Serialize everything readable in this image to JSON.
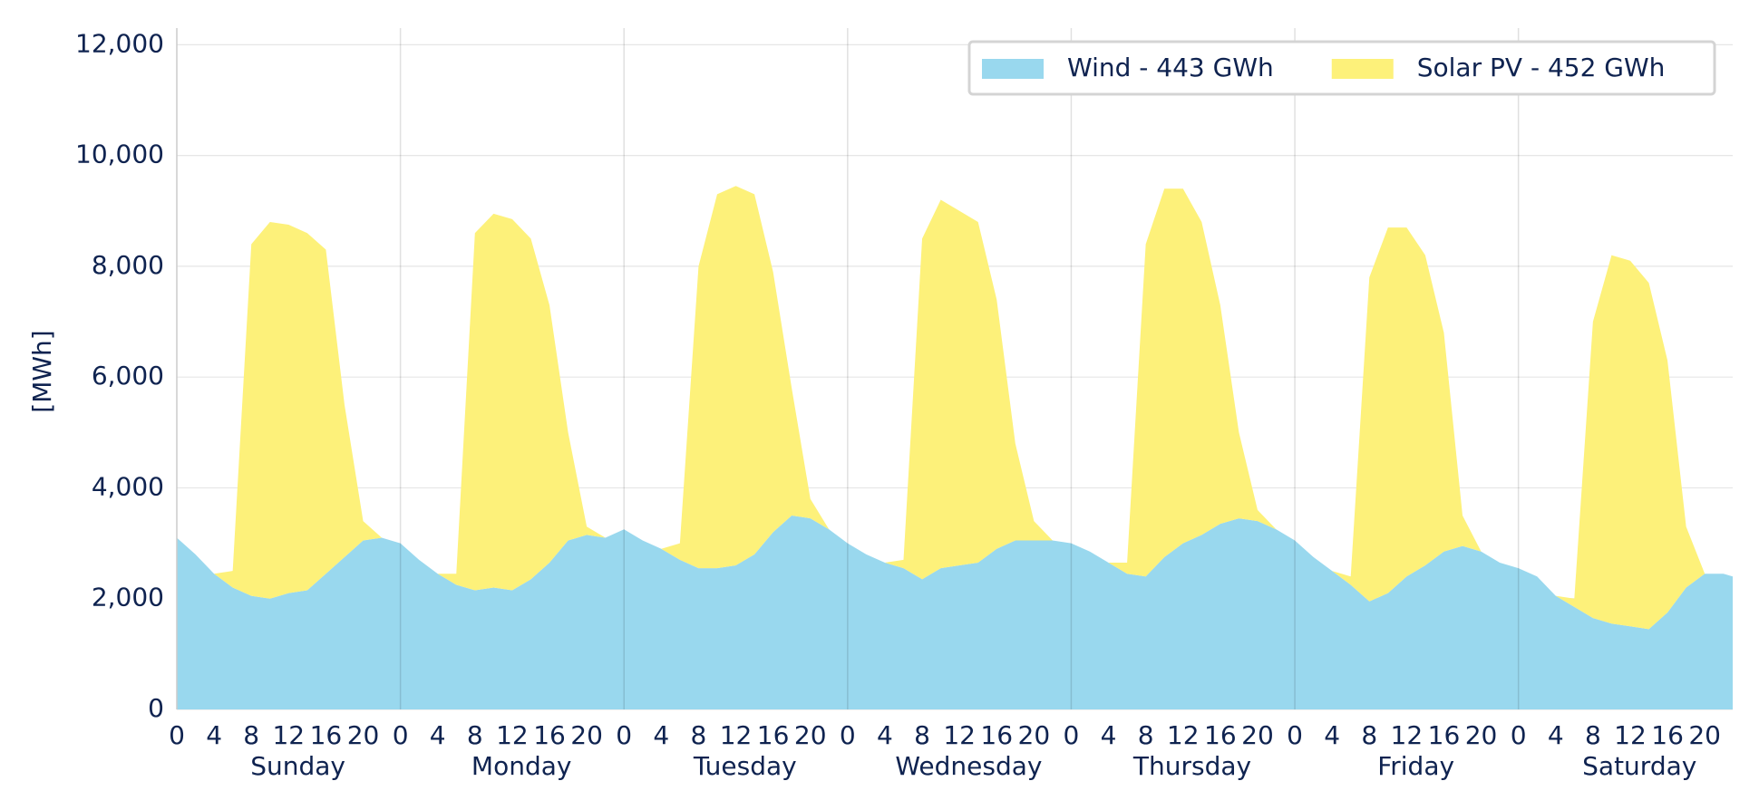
{
  "chart_data": {
    "type": "stacked-area",
    "ylabel": "[MWh]",
    "x": [
      0,
      2,
      4,
      6,
      8,
      10,
      12,
      14,
      16,
      18,
      20,
      22,
      24,
      26,
      28,
      30,
      32,
      34,
      36,
      38,
      40,
      42,
      44,
      46,
      48,
      50,
      52,
      54,
      56,
      58,
      60,
      62,
      64,
      66,
      68,
      70,
      72,
      74,
      76,
      78,
      80,
      82,
      84,
      86,
      88,
      90,
      92,
      94,
      96,
      98,
      100,
      102,
      104,
      106,
      108,
      110,
      112,
      114,
      116,
      118,
      120,
      122,
      124,
      126,
      128,
      130,
      132,
      134,
      136,
      138,
      140,
      142,
      144,
      146,
      148,
      150,
      152,
      154,
      156,
      158,
      160,
      162,
      164,
      166,
      167
    ],
    "series": [
      {
        "name": "Wind - 443 GWh",
        "color": "#99d8ee",
        "values": [
          3100,
          2800,
          2450,
          2200,
          2050,
          2000,
          2100,
          2150,
          2450,
          2750,
          3050,
          3100,
          3000,
          2700,
          2450,
          2250,
          2150,
          2200,
          2150,
          2350,
          2650,
          3050,
          3150,
          3100,
          3250,
          3050,
          2900,
          2700,
          2550,
          2550,
          2600,
          2800,
          3200,
          3500,
          3450,
          3250,
          3000,
          2800,
          2650,
          2550,
          2350,
          2550,
          2600,
          2650,
          2900,
          3050,
          3050,
          3050,
          3000,
          2850,
          2650,
          2450,
          2400,
          2750,
          3000,
          3150,
          3350,
          3450,
          3400,
          3250,
          3050,
          2750,
          2500,
          2250,
          1950,
          2100,
          2400,
          2600,
          2850,
          2950,
          2850,
          2650,
          2550,
          2400,
          2050,
          1850,
          1650,
          1550,
          1500,
          1450,
          1750,
          2200,
          2450,
          2450,
          2400
        ]
      },
      {
        "name": "Solar PV - 452 GWh",
        "color": "#fdf17a",
        "values": [
          0,
          0,
          0,
          300,
          6350,
          6800,
          6650,
          6450,
          5850,
          2750,
          350,
          0,
          0,
          0,
          0,
          200,
          6450,
          6750,
          6700,
          6150,
          4650,
          1950,
          150,
          0,
          0,
          0,
          0,
          300,
          5450,
          6750,
          6850,
          6500,
          4700,
          2300,
          350,
          0,
          0,
          0,
          0,
          150,
          6150,
          6650,
          6400,
          6150,
          4500,
          1750,
          350,
          0,
          0,
          0,
          0,
          200,
          6000,
          6650,
          6400,
          5650,
          3950,
          1550,
          200,
          0,
          0,
          0,
          0,
          150,
          5850,
          6600,
          6300,
          5600,
          3950,
          550,
          0,
          0,
          0,
          0,
          0,
          150,
          5350,
          6650,
          6600,
          6250,
          4550,
          1100,
          0,
          0,
          0
        ]
      }
    ],
    "xlim": [
      0,
      167
    ],
    "xticks": [
      0,
      4,
      8,
      12,
      16,
      20,
      {
        "value": 24,
        "label": "0"
      },
      {
        "value": 28,
        "label": "4"
      },
      {
        "value": 32,
        "label": "8"
      },
      {
        "value": 36,
        "label": "12"
      },
      {
        "value": 40,
        "label": "16"
      },
      {
        "value": 44,
        "label": "20"
      },
      {
        "value": 48,
        "label": "0"
      },
      {
        "value": 52,
        "label": "4"
      },
      {
        "value": 56,
        "label": "8"
      },
      {
        "value": 60,
        "label": "12"
      },
      {
        "value": 64,
        "label": "16"
      },
      {
        "value": 68,
        "label": "20"
      },
      {
        "value": 72,
        "label": "0"
      },
      {
        "value": 76,
        "label": "4"
      },
      {
        "value": 80,
        "label": "8"
      },
      {
        "value": 84,
        "label": "12"
      },
      {
        "value": 88,
        "label": "16"
      },
      {
        "value": 92,
        "label": "20"
      },
      {
        "value": 96,
        "label": "0"
      },
      {
        "value": 100,
        "label": "4"
      },
      {
        "value": 104,
        "label": "8"
      },
      {
        "value": 108,
        "label": "12"
      },
      {
        "value": 112,
        "label": "16"
      },
      {
        "value": 116,
        "label": "20"
      },
      {
        "value": 120,
        "label": "0"
      },
      {
        "value": 124,
        "label": "4"
      },
      {
        "value": 128,
        "label": "8"
      },
      {
        "value": 132,
        "label": "12"
      },
      {
        "value": 136,
        "label": "16"
      },
      {
        "value": 140,
        "label": "20"
      },
      {
        "value": 144,
        "label": "0"
      },
      {
        "value": 148,
        "label": "4"
      },
      {
        "value": 152,
        "label": "8"
      },
      {
        "value": 156,
        "label": "12"
      },
      {
        "value": 160,
        "label": "16"
      },
      {
        "value": 164,
        "label": "20"
      }
    ],
    "days": [
      "Sunday",
      "Monday",
      "Tuesday",
      "Wednesday",
      "Thursday",
      "Friday",
      "Saturday"
    ],
    "ylim": [
      0,
      12300
    ],
    "yticks": [
      0,
      {
        "value": 2000,
        "label": "2,000"
      },
      {
        "value": 4000,
        "label": "4,000"
      },
      {
        "value": 6000,
        "label": "6,000"
      },
      {
        "value": 8000,
        "label": "8,000"
      },
      {
        "value": 10000,
        "label": "10,000"
      },
      {
        "value": 12000,
        "label": "12,000"
      }
    ],
    "grid": true,
    "legend": "upper right"
  }
}
